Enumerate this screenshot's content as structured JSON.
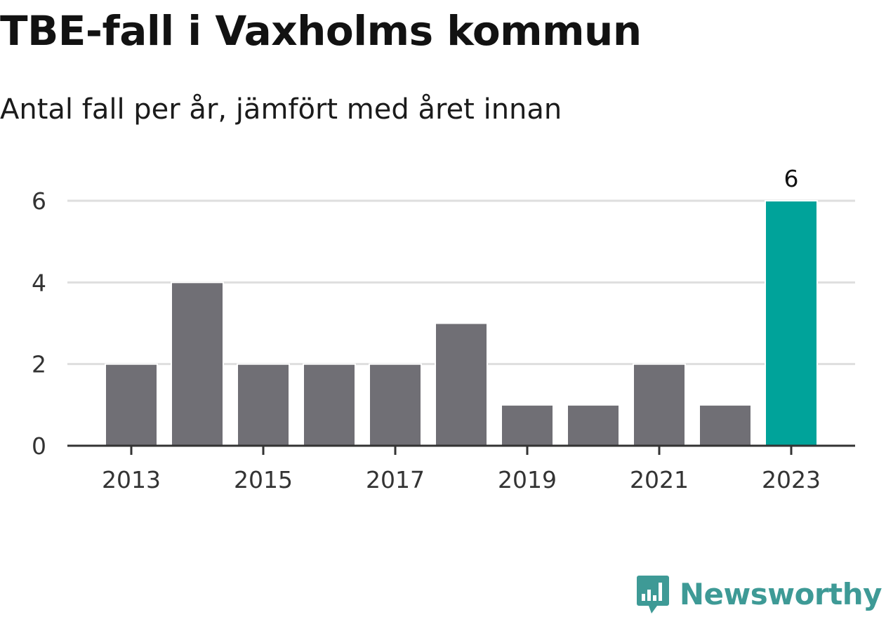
{
  "title": "TBE-fall i Vaxholms kommun",
  "subtitle": "Antal fall per år, jämfört med året innan",
  "brand": {
    "name": "Newsworthy",
    "icon": "newsworthy-logo-icon",
    "color": "#3e9a96"
  },
  "colors": {
    "bar": "#706f75",
    "highlight": "#00a39a",
    "grid": "#dedede",
    "axis": "#333333"
  },
  "chart_data": {
    "type": "bar",
    "categories": [
      "2013",
      "2014",
      "2015",
      "2016",
      "2017",
      "2018",
      "2019",
      "2020",
      "2021",
      "2022",
      "2023"
    ],
    "values": [
      2,
      4,
      2,
      2,
      2,
      3,
      1,
      1,
      2,
      1,
      6
    ],
    "highlight_index": 10,
    "data_labels": [
      {
        "category": "2023",
        "text": "6"
      }
    ],
    "x_tick_labels": [
      "2013",
      "2015",
      "2017",
      "2019",
      "2021",
      "2023"
    ],
    "y_ticks": [
      0,
      2,
      4,
      6
    ],
    "ylim": [
      0,
      6
    ],
    "xlabel": "",
    "ylabel": "",
    "grid": "horizontal",
    "legend": "none"
  }
}
